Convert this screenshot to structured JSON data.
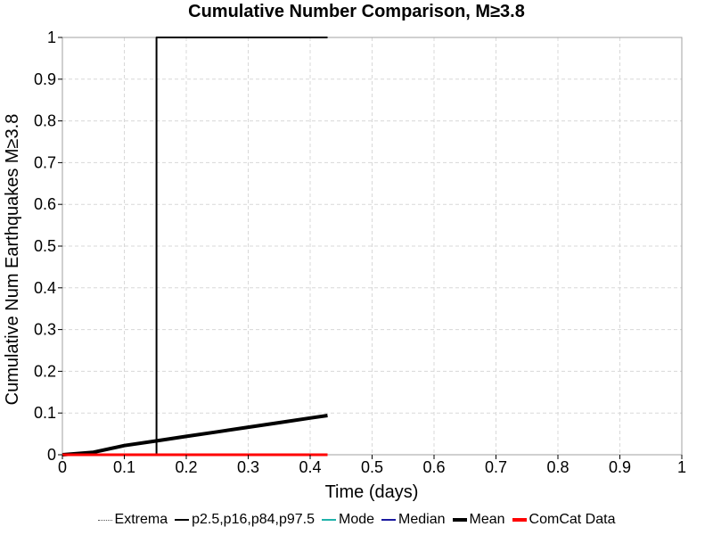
{
  "chart_data": {
    "type": "line",
    "title": "Cumulative Number Comparison, M≥3.8",
    "xlabel": "Time (days)",
    "ylabel": "Cumulative Num Earthquakes M≥3.8",
    "xlim": [
      0,
      1
    ],
    "ylim": [
      0,
      1
    ],
    "x_ticks": [
      "0",
      "0.1",
      "0.2",
      "0.3",
      "0.4",
      "0.5",
      "0.6",
      "0.7",
      "0.8",
      "0.9",
      "1"
    ],
    "y_ticks": [
      "0",
      "0.1",
      "0.2",
      "0.3",
      "0.4",
      "0.5",
      "0.6",
      "0.7",
      "0.8",
      "0.9",
      "1"
    ],
    "grid": true,
    "legend_position": "bottom",
    "legend": [
      {
        "name": "Extrema",
        "color": "#555555",
        "style": "dotted"
      },
      {
        "name": "p2.5,p16,p84,p97.5",
        "color": "#000000",
        "style": "thin"
      },
      {
        "name": "Mode",
        "color": "#20b2aa",
        "style": "solid"
      },
      {
        "name": "Median",
        "color": "#1a1aa0",
        "style": "solid"
      },
      {
        "name": "Mean",
        "color": "#000000",
        "style": "thick"
      },
      {
        "name": "ComCat Data",
        "color": "#ff0000",
        "style": "thick"
      }
    ],
    "series": [
      {
        "name": "p2.5,p16,p84,p97.5",
        "color": "#000000",
        "width": 2,
        "x": [
          0,
          0.152,
          0.152,
          0.428
        ],
        "y": [
          0,
          0,
          1,
          1
        ]
      },
      {
        "name": "Mean",
        "color": "#000000",
        "width": 4,
        "x": [
          0,
          0.05,
          0.1,
          0.15,
          0.2,
          0.25,
          0.3,
          0.35,
          0.4,
          0.428
        ],
        "y": [
          0,
          0.006,
          0.022,
          0.033,
          0.044,
          0.055,
          0.066,
          0.077,
          0.088,
          0.094
        ]
      },
      {
        "name": "ComCat Data",
        "color": "#ff0000",
        "width": 3,
        "x": [
          0,
          0.428
        ],
        "y": [
          0,
          0
        ]
      }
    ]
  }
}
